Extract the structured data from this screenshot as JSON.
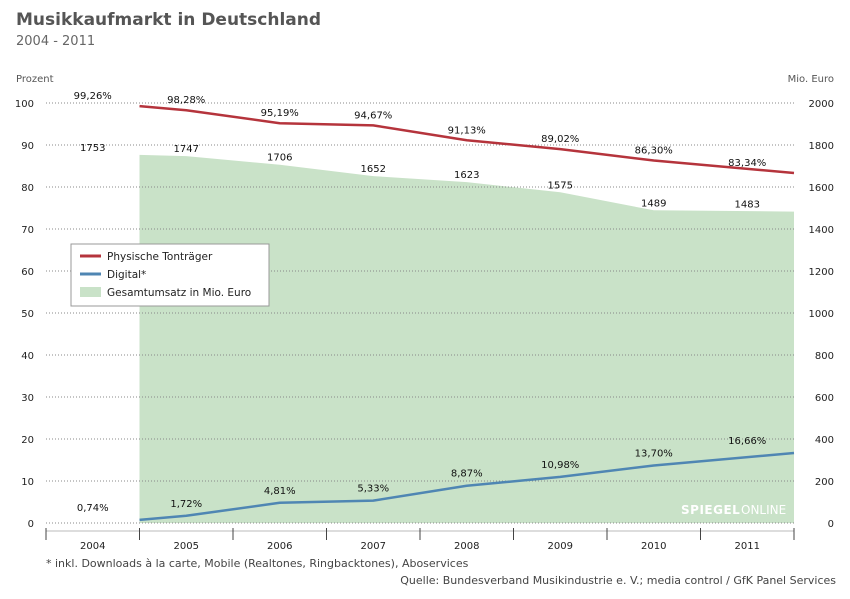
{
  "title": "Musikkaufmarkt in Deutschland",
  "subtitle": "2004 - 2011",
  "footnote": "* inkl. Downloads à la carte, Mobile (Realtones, Ringbacktones), Aboservices",
  "source": "Quelle: Bundesverband Musikindustrie e. V.; media control / GfK Panel Services",
  "watermark": {
    "bold": "SPIEGEL",
    "light": "ONLINE"
  },
  "colors": {
    "physisch": "#b5343c",
    "digital": "#4f86b3",
    "gesamt": "#c9e2c8"
  },
  "chart_data": {
    "type": "line+area",
    "categories": [
      "2004",
      "2005",
      "2006",
      "2007",
      "2008",
      "2009",
      "2010",
      "2011"
    ],
    "y_left": {
      "label": "Prozent",
      "range": [
        0,
        100
      ],
      "ticks": [
        "0",
        "10",
        "20",
        "30",
        "40",
        "50",
        "60",
        "70",
        "80",
        "90",
        "100"
      ]
    },
    "y_right": {
      "label": "Mio. Euro",
      "range": [
        0,
        2000
      ],
      "ticks": [
        "0",
        "200",
        "400",
        "600",
        "800",
        "1000",
        "1200",
        "1400",
        "1600",
        "1800",
        "2000"
      ]
    },
    "grid": true,
    "legend_position": "left",
    "series": [
      {
        "name": "Physische Tonträger",
        "type": "line",
        "axis": "left",
        "values": [
          99.26,
          98.28,
          95.19,
          94.67,
          91.13,
          89.02,
          86.3,
          83.34
        ],
        "labels": [
          "99,26%",
          "98,28%",
          "95,19%",
          "94,67%",
          "91,13%",
          "89,02%",
          "86,30%",
          "83,34%"
        ]
      },
      {
        "name": "Digital*",
        "type": "line",
        "axis": "left",
        "values": [
          0.74,
          1.72,
          4.81,
          5.33,
          8.87,
          10.98,
          13.7,
          16.66
        ],
        "labels": [
          "0,74%",
          "1,72%",
          "4,81%",
          "5,33%",
          "8,87%",
          "10,98%",
          "13,70%",
          "16,66%"
        ]
      },
      {
        "name": "Gesamtumsatz in Mio. Euro",
        "type": "area",
        "axis": "right",
        "values": [
          1753,
          1747,
          1706,
          1652,
          1623,
          1575,
          1489,
          1483
        ],
        "labels": [
          "1753",
          "1747",
          "1706",
          "1652",
          "1623",
          "1575",
          "1489",
          "1483"
        ]
      }
    ]
  }
}
